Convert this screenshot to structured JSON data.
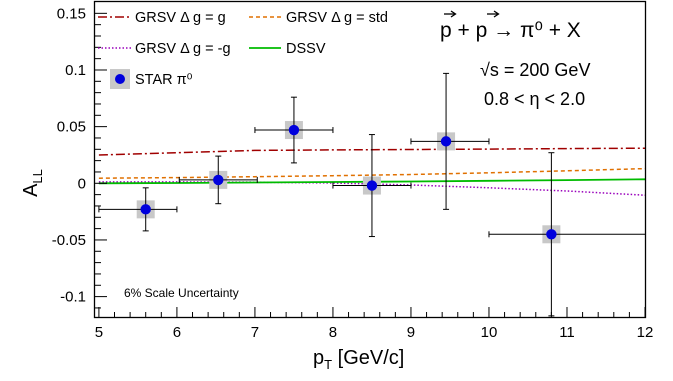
{
  "chart_data": {
    "type": "scatter",
    "xlabel": "p_T [GeV/c]",
    "xlabel_main": "p",
    "xlabel_sub": "T",
    "xlabel_rest": " [GeV/c]",
    "ylabel": "A_LL",
    "ylabel_main": "A",
    "ylabel_sub": "LL",
    "xlim": [
      4.95,
      12.0
    ],
    "ylim": [
      -0.118,
      0.16
    ],
    "x_ticks": [
      5,
      6,
      7,
      8,
      9,
      10,
      11,
      12
    ],
    "x_tick_labels": [
      "5",
      "6",
      "7",
      "8",
      "9",
      "10",
      "11",
      "12"
    ],
    "y_ticks": [
      -0.1,
      -0.05,
      0,
      0.05,
      0.1,
      0.15
    ],
    "y_tick_labels": [
      "-0.1",
      "-0.05",
      "0",
      "0.05",
      "0.1",
      "0.15"
    ],
    "grid": false,
    "legend_position": "top-left",
    "data_series": {
      "name": "STAR π⁰",
      "color": "#0000dd",
      "points": [
        {
          "x": 5.6,
          "y": -0.023,
          "xerr_lo": 0.6,
          "xerr_hi": 0.4,
          "yerr": 0.019,
          "syst": 0.002
        },
        {
          "x": 6.53,
          "y": 0.003,
          "xerr_lo": 0.5,
          "xerr_hi": 0.5,
          "yerr": 0.021,
          "syst": 0.002
        },
        {
          "x": 7.5,
          "y": 0.047,
          "xerr_lo": 0.5,
          "xerr_hi": 0.5,
          "yerr": 0.029,
          "syst": 0.003
        },
        {
          "x": 8.5,
          "y": -0.002,
          "xerr_lo": 0.5,
          "xerr_hi": 0.5,
          "yerr": 0.045,
          "syst": 0.003
        },
        {
          "x": 9.45,
          "y": 0.037,
          "xerr_lo": 0.45,
          "xerr_hi": 0.55,
          "yerr": 0.06,
          "syst": 0.005
        },
        {
          "x": 10.8,
          "y": -0.045,
          "xerr_lo": 0.8,
          "xerr_hi": 1.2,
          "yerr": 0.072,
          "syst": 0.007
        }
      ]
    },
    "curves": [
      {
        "name": "GRSV Δ g = g",
        "color": "#a00000",
        "dash": "9,3,2,3",
        "x": [
          5,
          6,
          7,
          8,
          9,
          10,
          11,
          12
        ],
        "y": [
          0.025,
          0.027,
          0.029,
          0.0295,
          0.0298,
          0.0302,
          0.0306,
          0.031
        ]
      },
      {
        "name": "GRSV Δ g = std",
        "color": "#e07000",
        "dash": "4,3",
        "x": [
          5,
          6,
          7,
          8,
          9,
          10,
          11,
          12
        ],
        "y": [
          0.0045,
          0.005,
          0.0058,
          0.0067,
          0.0078,
          0.0093,
          0.011,
          0.013
        ]
      },
      {
        "name": "GRSV Δ g = -g",
        "color": "#9900bb",
        "dash": "1.5,2",
        "x": [
          5,
          6,
          7,
          8,
          9,
          10,
          11,
          12
        ],
        "y": [
          0.0012,
          0.0012,
          0.001,
          0.0003,
          -0.0015,
          -0.004,
          -0.0068,
          -0.0105
        ]
      },
      {
        "name": "DSSV",
        "color": "#00bb00",
        "dash": "",
        "x": [
          5,
          6,
          7,
          8,
          9,
          10,
          11,
          12
        ],
        "y": [
          0.0,
          0.0003,
          0.0007,
          0.0011,
          0.0016,
          0.0022,
          0.0028,
          0.0035
        ]
      }
    ],
    "legend_entries": [
      {
        "label": "GRSV Δ g = g",
        "kind": "line",
        "ref": 0
      },
      {
        "label": "GRSV Δ g = std",
        "kind": "line",
        "ref": 1
      },
      {
        "label": "GRSV Δ g = -g",
        "kind": "line",
        "ref": 2
      },
      {
        "label": "DSSV",
        "kind": "line",
        "ref": 3
      },
      {
        "label": "STAR π⁰",
        "kind": "marker"
      }
    ],
    "annotations": {
      "reaction": "p + p → π⁰ + X",
      "energy": "√s = 200 GeV",
      "eta": "0.8 < η < 2.0",
      "scale_uncertainty": "6% Scale Uncertainty"
    }
  }
}
